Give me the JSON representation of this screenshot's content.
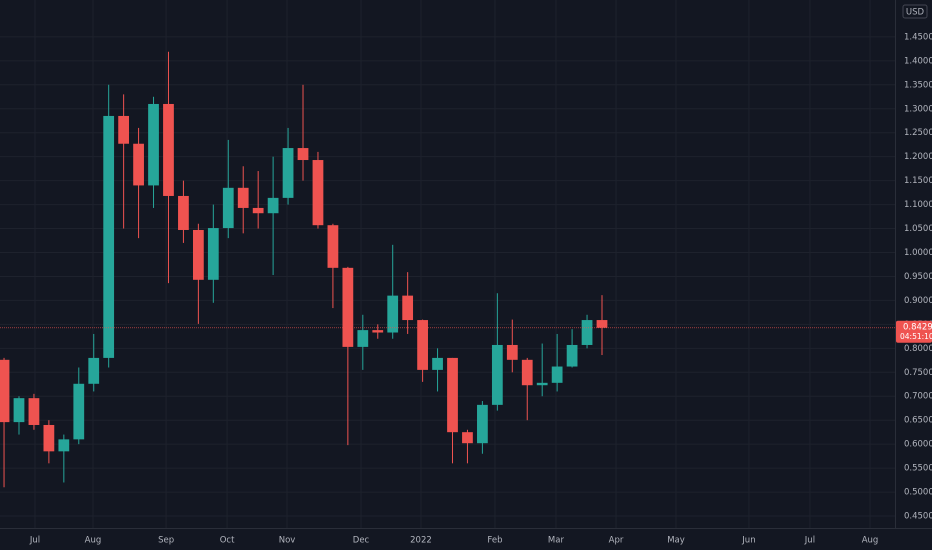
{
  "chart_data": {
    "type": "candlestick",
    "currency": "USD",
    "up_color": "#26a69a",
    "down_color": "#ef5350",
    "grid": true,
    "x": [
      0,
      1,
      2,
      3,
      4,
      5,
      6,
      7,
      8,
      9,
      10,
      11,
      12,
      13,
      14,
      15,
      16,
      17,
      18,
      19,
      20,
      21,
      22,
      23,
      24,
      25,
      26,
      27,
      28,
      29,
      30,
      31,
      32,
      33,
      34,
      35,
      36,
      37,
      38,
      39,
      40
    ],
    "open": [
      0.776,
      0.646,
      0.696,
      0.64,
      0.585,
      0.61,
      0.726,
      0.78,
      1.285,
      1.227,
      1.14,
      1.31,
      1.118,
      1.047,
      0.943,
      1.051,
      1.135,
      1.093,
      1.082,
      1.114,
      1.218,
      1.193,
      1.057,
      0.968,
      0.803,
      0.838,
      0.833,
      0.91,
      0.859,
      0.755,
      0.78,
      0.625,
      0.602,
      0.682,
      0.807,
      0.776,
      0.723,
      0.728,
      0.762,
      0.807,
      0.859
    ],
    "high": [
      0.78,
      0.7,
      0.705,
      0.65,
      0.62,
      0.76,
      0.83,
      1.35,
      1.33,
      1.26,
      1.325,
      1.419,
      1.15,
      1.06,
      1.1,
      1.235,
      1.18,
      1.17,
      1.2,
      1.26,
      1.35,
      1.21,
      1.06,
      0.97,
      0.87,
      0.85,
      1.016,
      0.959,
      0.86,
      0.8,
      0.78,
      0.63,
      0.69,
      0.915,
      0.86,
      0.78,
      0.81,
      0.83,
      0.84,
      0.87,
      0.911
    ],
    "low": [
      0.51,
      0.62,
      0.63,
      0.56,
      0.52,
      0.6,
      0.71,
      0.76,
      1.05,
      1.03,
      1.093,
      0.936,
      1.02,
      0.851,
      0.895,
      1.03,
      1.04,
      1.05,
      0.953,
      1.1,
      1.15,
      1.05,
      0.884,
      0.598,
      0.755,
      0.82,
      0.82,
      0.83,
      0.73,
      0.71,
      0.56,
      0.56,
      0.58,
      0.67,
      0.75,
      0.65,
      0.7,
      0.71,
      0.76,
      0.8,
      0.786
    ],
    "close": [
      0.646,
      0.696,
      0.64,
      0.585,
      0.61,
      0.726,
      0.78,
      1.285,
      1.227,
      1.14,
      1.31,
      1.118,
      1.047,
      0.943,
      1.051,
      1.135,
      1.093,
      1.082,
      1.114,
      1.218,
      1.193,
      1.057,
      0.968,
      0.803,
      0.838,
      0.833,
      0.91,
      0.859,
      0.755,
      0.78,
      0.625,
      0.602,
      0.682,
      0.807,
      0.776,
      0.723,
      0.728,
      0.762,
      0.807,
      0.859,
      0.843
    ],
    "xlim": [
      -0.27,
      59.4
    ],
    "xticks": [
      {
        "value": 2.07,
        "label": "Jul"
      },
      {
        "value": 5.95,
        "label": "Aug"
      },
      {
        "value": 10.84,
        "label": "Sep"
      },
      {
        "value": 14.92,
        "label": "Oct"
      },
      {
        "value": 18.93,
        "label": "Nov"
      },
      {
        "value": 23.88,
        "label": "Dec"
      },
      {
        "value": 27.89,
        "label": "2022"
      },
      {
        "value": 32.84,
        "label": "Feb"
      },
      {
        "value": 36.92,
        "label": "Mar"
      },
      {
        "value": 40.94,
        "label": "Apr"
      },
      {
        "value": 44.95,
        "label": "May"
      },
      {
        "value": 49.83,
        "label": "Jun"
      },
      {
        "value": 53.91,
        "label": "Jul"
      },
      {
        "value": 57.93,
        "label": "Aug"
      }
    ],
    "ylim": [
      0.425,
      1.527
    ],
    "yticks": [
      {
        "value": 0.45,
        "label": "0.4500"
      },
      {
        "value": 0.5,
        "label": "0.5000"
      },
      {
        "value": 0.55,
        "label": "0.5500"
      },
      {
        "value": 0.6,
        "label": "0.6000"
      },
      {
        "value": 0.65,
        "label": "0.6500"
      },
      {
        "value": 0.7,
        "label": "0.7000"
      },
      {
        "value": 0.75,
        "label": "0.7500"
      },
      {
        "value": 0.8,
        "label": "0.8000"
      },
      {
        "value": 0.85,
        "label": "0.8500"
      },
      {
        "value": 0.9,
        "label": "0.9000"
      },
      {
        "value": 0.95,
        "label": "0.9500"
      },
      {
        "value": 1.0,
        "label": "1.0000"
      },
      {
        "value": 1.05,
        "label": "1.0500"
      },
      {
        "value": 1.1,
        "label": "1.1000"
      },
      {
        "value": 1.15,
        "label": "1.1500"
      },
      {
        "value": 1.2,
        "label": "1.2000"
      },
      {
        "value": 1.25,
        "label": "1.2500"
      },
      {
        "value": 1.3,
        "label": "1.3000"
      },
      {
        "value": 1.35,
        "label": "1.3500"
      },
      {
        "value": 1.4,
        "label": "1.4000"
      },
      {
        "value": 1.45,
        "label": "1.4500"
      }
    ],
    "last_price": 0.8429,
    "countdown": "04:51:10"
  }
}
